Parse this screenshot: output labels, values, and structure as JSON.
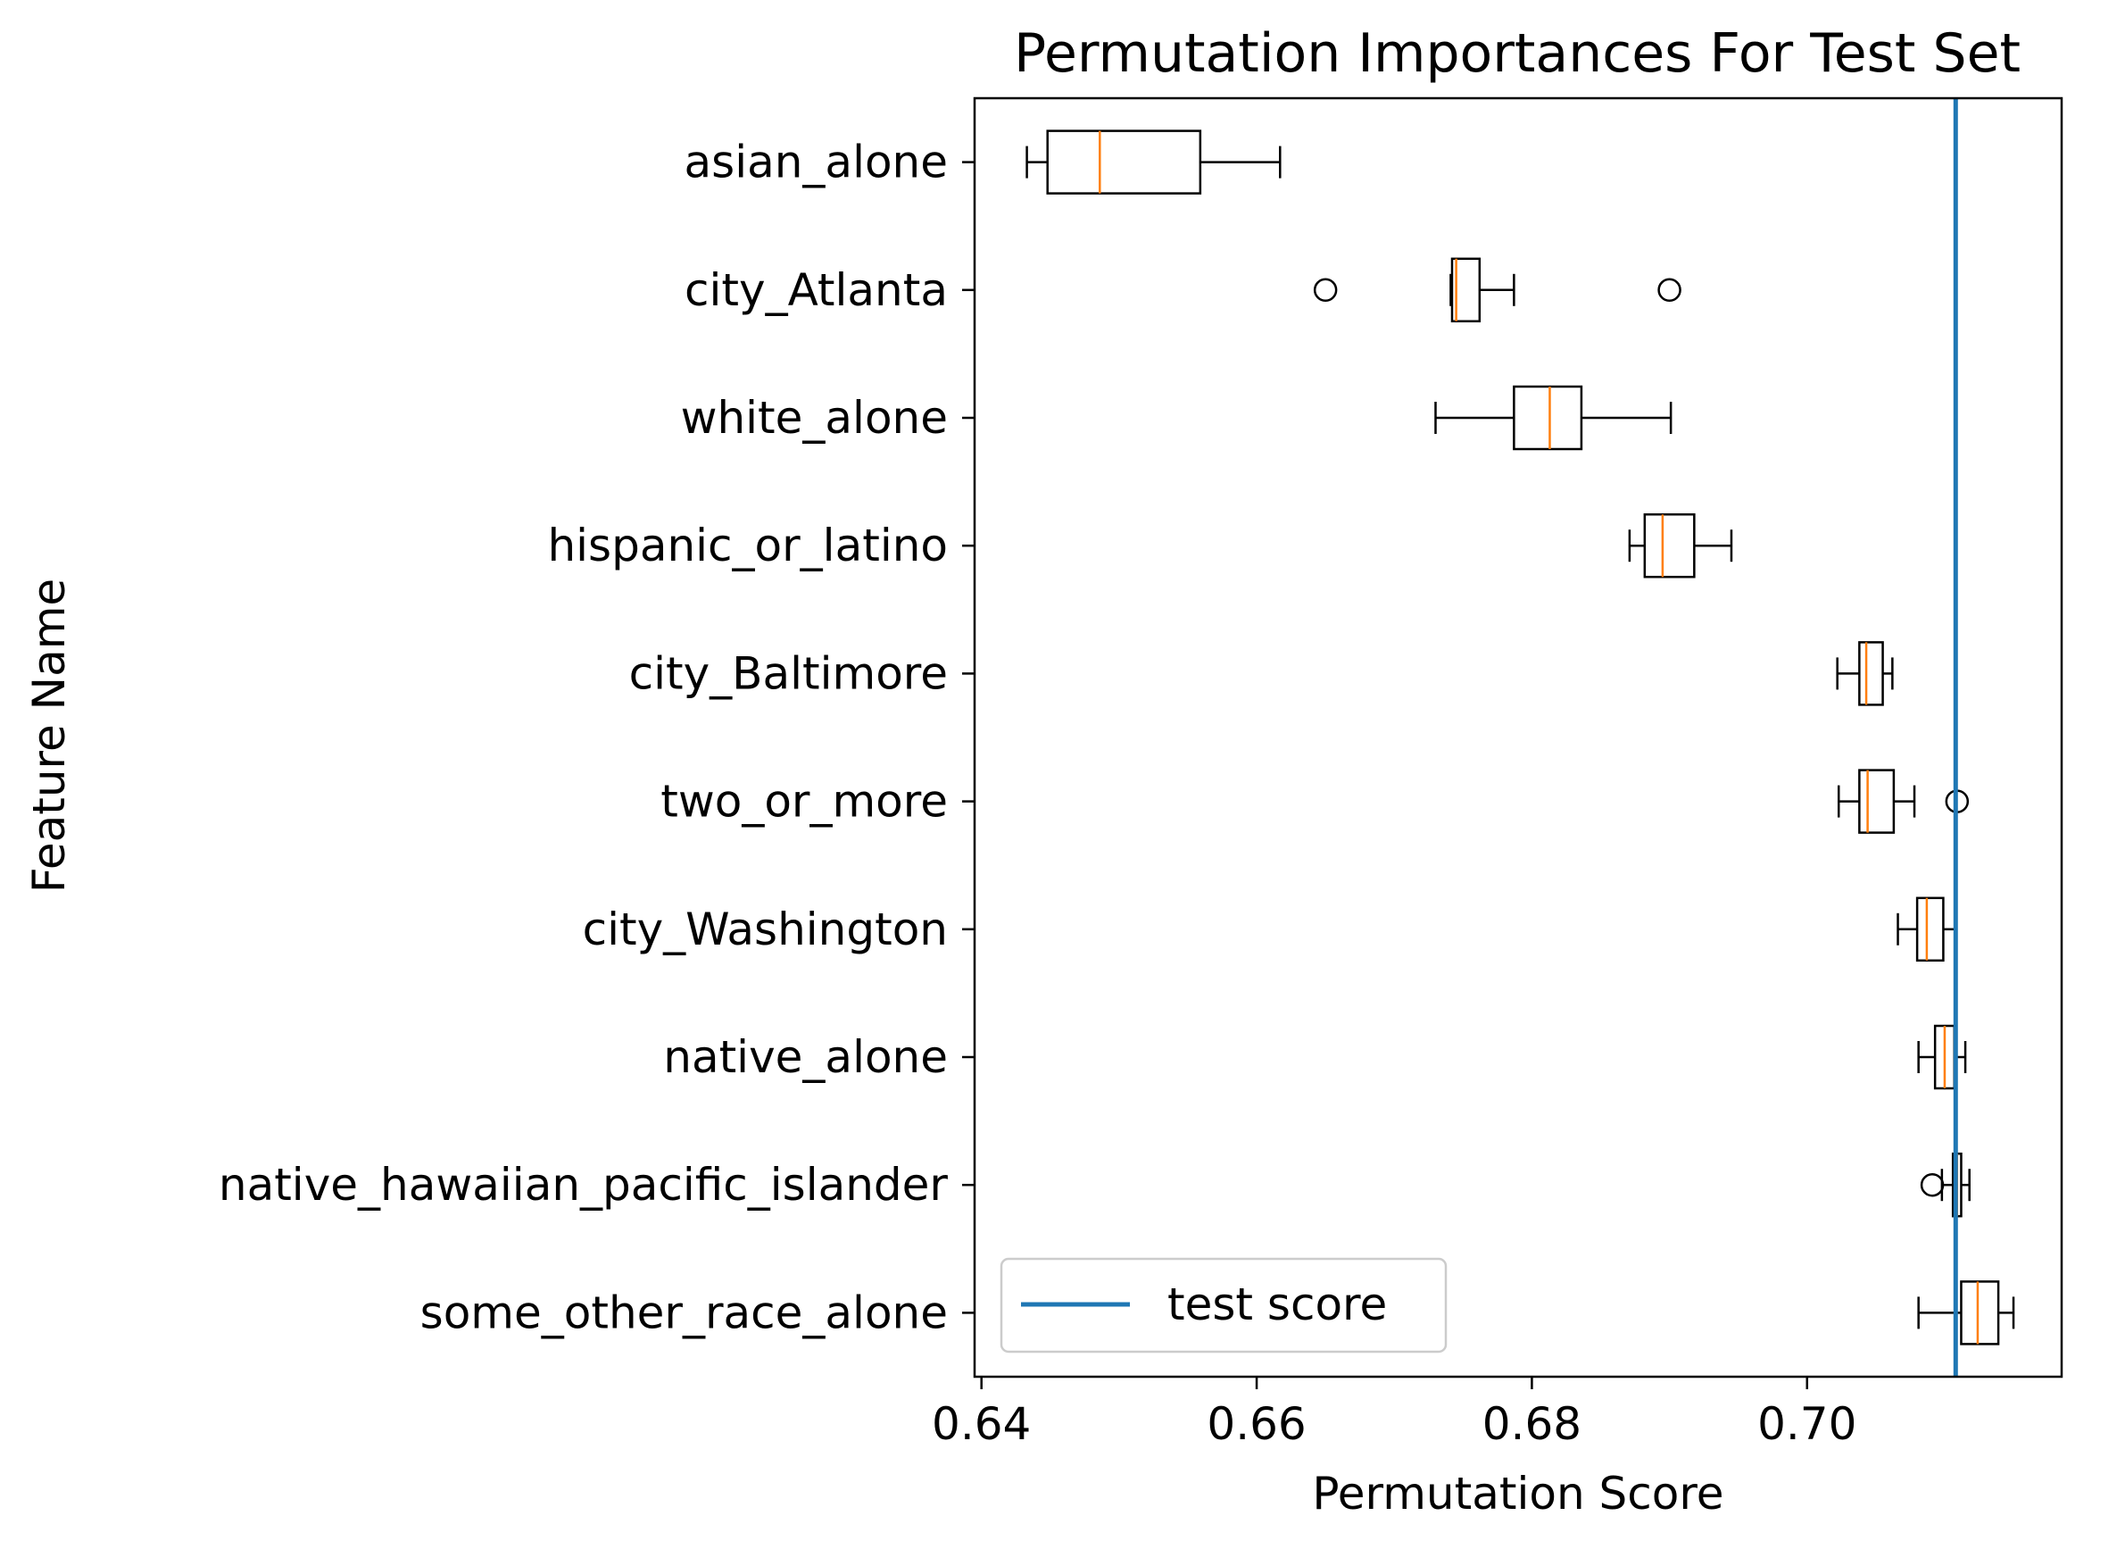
{
  "chart_data": {
    "type": "boxplot-horizontal",
    "title": "Permutation Importances For Test Set",
    "xlabel": "Permutation Score",
    "ylabel": "Feature Name",
    "xlim": [
      0.6395,
      0.7185
    ],
    "xticks": [
      0.64,
      0.66,
      0.68,
      0.7
    ],
    "xtick_labels": [
      "0.64",
      "0.66",
      "0.68",
      "0.70"
    ],
    "test_score": 0.7108,
    "legend": {
      "label": "test score",
      "position": "lower-left",
      "color": "#1f77b4"
    },
    "colors": {
      "box": "#000000",
      "median": "#ff7f0e",
      "test_line": "#1f77b4"
    },
    "features": [
      {
        "name": "asian_alone",
        "whislo": 0.6433,
        "q1": 0.6448,
        "med": 0.6486,
        "q3": 0.6559,
        "whishi": 0.6617,
        "fliers": []
      },
      {
        "name": "city_Atlanta",
        "whislo": 0.6741,
        "q1": 0.6742,
        "med": 0.6745,
        "q3": 0.6762,
        "whishi": 0.6787,
        "fliers": [
          0.665,
          0.69
        ]
      },
      {
        "name": "white_alone",
        "whislo": 0.673,
        "q1": 0.6787,
        "med": 0.6813,
        "q3": 0.6836,
        "whishi": 0.6901,
        "fliers": []
      },
      {
        "name": "hispanic_or_latino",
        "whislo": 0.6871,
        "q1": 0.6882,
        "med": 0.6895,
        "q3": 0.6918,
        "whishi": 0.6945,
        "fliers": []
      },
      {
        "name": "city_Baltimore",
        "whislo": 0.7022,
        "q1": 0.7038,
        "med": 0.7043,
        "q3": 0.7055,
        "whishi": 0.7062,
        "fliers": []
      },
      {
        "name": "two_or_more",
        "whislo": 0.7023,
        "q1": 0.7038,
        "med": 0.7044,
        "q3": 0.7063,
        "whishi": 0.7078,
        "fliers": [
          0.7109
        ]
      },
      {
        "name": "city_Washington",
        "whislo": 0.7066,
        "q1": 0.708,
        "med": 0.7087,
        "q3": 0.7099,
        "whishi": 0.7108,
        "fliers": []
      },
      {
        "name": "native_alone",
        "whislo": 0.7081,
        "q1": 0.7093,
        "med": 0.71,
        "q3": 0.7107,
        "whishi": 0.7115,
        "fliers": []
      },
      {
        "name": "native_hawaiian_pacific_islander",
        "whislo": 0.7098,
        "q1": 0.7106,
        "med": 0.7109,
        "q3": 0.7112,
        "whishi": 0.7118,
        "fliers": [
          0.7091
        ]
      },
      {
        "name": "some_other_race_alone",
        "whislo": 0.7081,
        "q1": 0.7112,
        "med": 0.7124,
        "q3": 0.7139,
        "whishi": 0.715,
        "fliers": []
      }
    ]
  }
}
